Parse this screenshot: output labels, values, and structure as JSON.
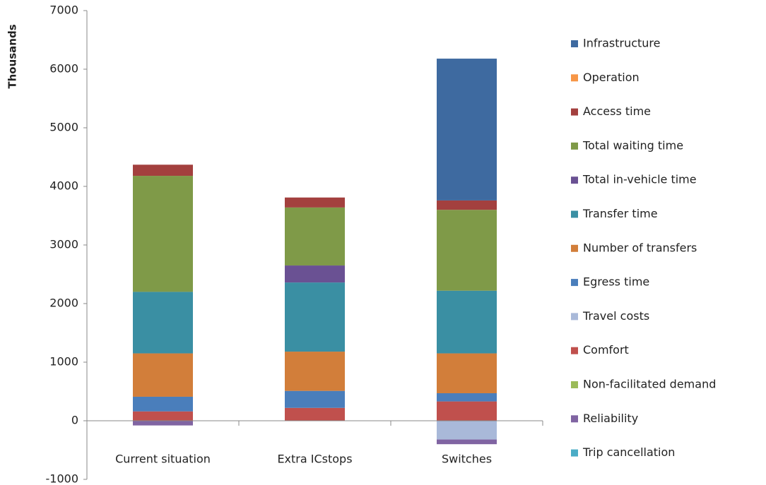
{
  "chart_data": {
    "type": "bar",
    "stacked": true,
    "grid": false,
    "y_label": "Thousands",
    "categories": [
      "Current situation",
      "Extra ICstops",
      "Switches"
    ],
    "ylim": [
      -1000,
      7000
    ],
    "yticks": [
      -1000,
      0,
      1000,
      2000,
      3000,
      4000,
      5000,
      6000,
      7000
    ],
    "series": [
      {
        "name": "Infrastructure",
        "color": "#3e6aa0",
        "values": [
          0,
          0,
          2420
        ]
      },
      {
        "name": "Operation",
        "color": "#f79646",
        "values": [
          0,
          0,
          0
        ]
      },
      {
        "name": "Access time",
        "color": "#a3403e",
        "values": [
          190,
          170,
          160
        ]
      },
      {
        "name": "Total waiting time",
        "color": "#7f9a48",
        "values": [
          1980,
          990,
          1380
        ]
      },
      {
        "name": "Total in-vehicle time",
        "color": "#6a5193",
        "values": [
          0,
          290,
          0
        ]
      },
      {
        "name": "Transfer time",
        "color": "#3a8fa3",
        "values": [
          1050,
          1180,
          1070
        ]
      },
      {
        "name": "Number of transfers",
        "color": "#d27e3a",
        "values": [
          740,
          670,
          680
        ]
      },
      {
        "name": "Egress time",
        "color": "#4a7ebb",
        "values": [
          250,
          290,
          140
        ]
      },
      {
        "name": "Travel costs",
        "color": "#a9b9d9",
        "values": [
          0,
          0,
          -320
        ]
      },
      {
        "name": "Comfort",
        "color": "#c0504d",
        "values": [
          160,
          220,
          330
        ]
      },
      {
        "name": "Non-facilitated demand",
        "color": "#9bbb59",
        "values": [
          0,
          0,
          0
        ]
      },
      {
        "name": "Reliability",
        "color": "#8064a2",
        "values": [
          -80,
          0,
          -80
        ]
      },
      {
        "name": "Trip cancellation",
        "color": "#4bacc6",
        "values": [
          0,
          0,
          0
        ]
      }
    ]
  }
}
